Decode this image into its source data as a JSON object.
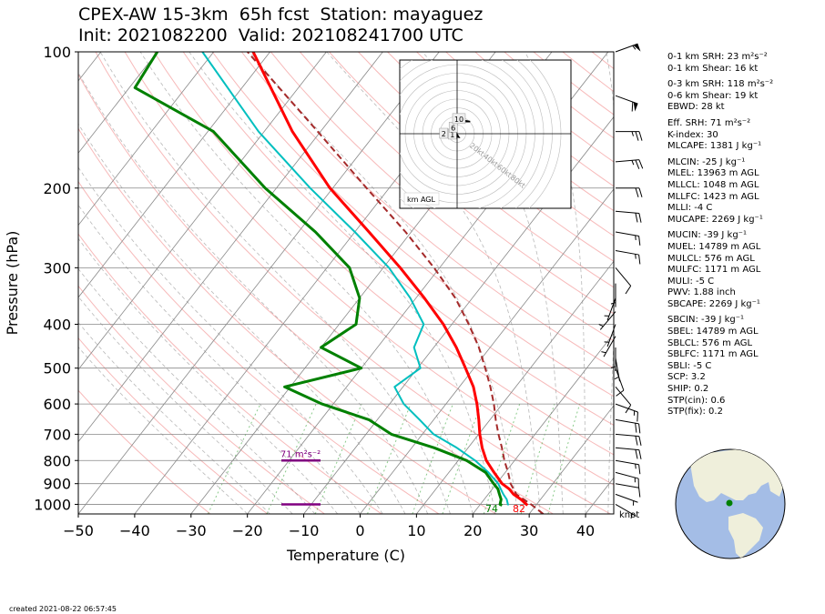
{
  "title_line1": "CPEX-AW 15-3km  65h fcst  Station: mayaguez",
  "title_line2": "Init: 2021082200  Valid: 202108241700 UTC",
  "created": "created 2021-08-22 06:57:45",
  "colors": {
    "temperature": "#ff0000",
    "dewpoint": "#008000",
    "wetbulb": "#00bfbf",
    "parcel": "#a52a2a",
    "srh_bar": "#800080",
    "dry_adiabat": "#f08080",
    "moist_adiabat": "#888888",
    "mixing_ratio": "#2ca02c",
    "isobar": "#888888"
  },
  "chart_data": {
    "type": "line",
    "subtype": "skew-T log-P",
    "xlabel": "Temperature (C)",
    "ylabel": "Pressure (hPa)",
    "xlim": [
      -50,
      45
    ],
    "ylim": [
      1050,
      100
    ],
    "yscale": "log",
    "xticks": [
      -50,
      -40,
      -30,
      -20,
      -10,
      0,
      10,
      20,
      30,
      40
    ],
    "yticks": [
      100,
      200,
      300,
      400,
      500,
      600,
      700,
      800,
      900,
      1000
    ],
    "grid": true,
    "series": [
      {
        "id": "temperature",
        "pressure": [
          1005,
          1000,
          975,
          950,
          925,
          900,
          850,
          800,
          750,
          700,
          650,
          600,
          550,
          500,
          450,
          400,
          350,
          300,
          250,
          200,
          150,
          100
        ],
        "values": [
          28.5,
          28.2,
          26.5,
          24.5,
          23.0,
          21.0,
          18.0,
          15.0,
          12.5,
          10.2,
          8.0,
          5.5,
          2.5,
          -1.5,
          -6.0,
          -11.5,
          -18.5,
          -27.0,
          -37.5,
          -50.5,
          -65.0,
          -83.0
        ]
      },
      {
        "id": "dewpoint",
        "pressure": [
          1005,
          1000,
          975,
          950,
          925,
          900,
          850,
          800,
          750,
          700,
          650,
          600,
          550,
          500,
          450,
          400,
          350,
          300,
          250,
          200,
          150,
          120,
          100
        ],
        "values": [
          24.0,
          23.5,
          23.0,
          22.0,
          21.0,
          19.5,
          16.5,
          11.5,
          4.0,
          -5.5,
          -11.5,
          -22.0,
          -31.0,
          -20.0,
          -30.0,
          -27.0,
          -30.0,
          -36.0,
          -47.0,
          -62.0,
          -79.0,
          -99.0,
          -100.0
        ]
      },
      {
        "id": "wetbulb",
        "pressure": [
          1005,
          1000,
          975,
          950,
          925,
          900,
          850,
          800,
          750,
          700,
          650,
          600,
          550,
          500,
          450,
          400,
          350,
          300,
          250,
          200,
          150,
          100
        ],
        "values": [
          25.0,
          24.9,
          24.0,
          22.7,
          21.5,
          20.3,
          17.0,
          13.0,
          8.0,
          2.0,
          -2.5,
          -7.5,
          -11.5,
          -9.5,
          -13.5,
          -15.0,
          -21.0,
          -29.0,
          -40.0,
          -54.0,
          -71.0,
          -92.0
        ]
      },
      {
        "id": "parcel",
        "pressure": [
          1050,
          1000,
          950,
          900,
          850,
          800,
          750,
          700,
          650,
          600,
          550,
          500,
          450,
          400,
          350,
          300,
          250,
          200,
          150,
          100
        ],
        "values": [
          32.5,
          29.0,
          25.0,
          22.5,
          20.5,
          18.2,
          16.0,
          13.5,
          11.0,
          8.5,
          5.5,
          2.0,
          -2.0,
          -7.0,
          -13.0,
          -21.0,
          -31.0,
          -44.0,
          -60.5,
          -84.0
        ]
      }
    ],
    "surface_labels": [
      {
        "text": "74",
        "temperature": 24.0,
        "color": "green"
      },
      {
        "text": "82",
        "temperature": 28.2,
        "color": "red"
      }
    ],
    "srh_label": "71 m²s⁻²",
    "srh_bars": [
      {
        "pressure": 800
      },
      {
        "pressure": 1000
      }
    ],
    "wind_barb_unit": "knot",
    "wind_barbs": [
      {
        "pressure": 100,
        "speed": 55,
        "direction": 70
      },
      {
        "pressure": 125,
        "speed": 60,
        "direction": 110
      },
      {
        "pressure": 150,
        "speed": 25,
        "direction": 90
      },
      {
        "pressure": 175,
        "speed": 25,
        "direction": 85
      },
      {
        "pressure": 200,
        "speed": 20,
        "direction": 90
      },
      {
        "pressure": 225,
        "speed": 20,
        "direction": 95
      },
      {
        "pressure": 250,
        "speed": 15,
        "direction": 100
      },
      {
        "pressure": 275,
        "speed": 15,
        "direction": 100
      },
      {
        "pressure": 300,
        "speed": 10,
        "direction": 140
      },
      {
        "pressure": 325,
        "speed": 5,
        "direction": 180
      },
      {
        "pressure": 350,
        "speed": 5,
        "direction": 200
      },
      {
        "pressure": 375,
        "speed": 5,
        "direction": 220
      },
      {
        "pressure": 400,
        "speed": 5,
        "direction": 200
      },
      {
        "pressure": 425,
        "speed": 5,
        "direction": 210
      },
      {
        "pressure": 450,
        "speed": 5,
        "direction": 180
      },
      {
        "pressure": 475,
        "speed": 5,
        "direction": 170
      },
      {
        "pressure": 500,
        "speed": 10,
        "direction": 160
      },
      {
        "pressure": 550,
        "speed": 10,
        "direction": 140
      },
      {
        "pressure": 600,
        "speed": 15,
        "direction": 110
      },
      {
        "pressure": 650,
        "speed": 20,
        "direction": 100
      },
      {
        "pressure": 700,
        "speed": 20,
        "direction": 95
      },
      {
        "pressure": 750,
        "speed": 20,
        "direction": 95
      },
      {
        "pressure": 800,
        "speed": 15,
        "direction": 100
      },
      {
        "pressure": 850,
        "speed": 15,
        "direction": 105
      },
      {
        "pressure": 900,
        "speed": 10,
        "direction": 100
      },
      {
        "pressure": 950,
        "speed": 5,
        "direction": 110
      },
      {
        "pressure": 1000,
        "speed": 5,
        "direction": 120
      }
    ],
    "hodograph": {
      "rings_kt": [
        20,
        40,
        60,
        80
      ],
      "ring_labels": [
        "20kt",
        "40kt",
        "60kt",
        "80kt"
      ],
      "legend": "km AGL",
      "height_labels": [
        {
          "text": "1",
          "u": -5,
          "v": -1
        },
        {
          "text": "2",
          "u": -15,
          "v": 0
        },
        {
          "text": "6",
          "u": -4,
          "v": 7
        },
        {
          "text": "10",
          "u": 0,
          "v": 17
        }
      ],
      "trace": [
        [
          -3,
          -3
        ],
        [
          2,
          -4
        ],
        [
          0,
          -1
        ],
        [
          -5,
          -1
        ],
        [
          -10,
          0
        ],
        [
          -14,
          2
        ],
        [
          -16,
          5
        ],
        [
          -13,
          4
        ],
        [
          -8,
          5
        ],
        [
          -6,
          9
        ],
        [
          -4,
          12
        ],
        [
          0,
          12
        ],
        [
          5,
          14
        ],
        [
          15,
          14
        ],
        [
          10,
          15
        ],
        [
          0,
          15
        ]
      ]
    }
  },
  "stats": [
    {
      "id": "srh1",
      "text": "0-1 km SRH: 23 m²s⁻²",
      "gap": false
    },
    {
      "id": "shr1",
      "text": "0-1 km Shear: 16 kt",
      "gap": true
    },
    {
      "id": "srh3",
      "text": "0-3 km SRH: 118 m²s⁻²",
      "gap": false
    },
    {
      "id": "shr6",
      "text": "0-6 km Shear: 19 kt",
      "gap": false
    },
    {
      "id": "ebwd",
      "text": "EBWD: 28 kt",
      "gap": true
    },
    {
      "id": "esrh",
      "text": "Eff. SRH: 71 m²s⁻²",
      "gap": false
    },
    {
      "id": "kidx",
      "text": "K-index: 30",
      "gap": false
    },
    {
      "id": "mlcape",
      "text": "MLCAPE: 1381 J kg⁻¹",
      "gap": true
    },
    {
      "id": "mlcin",
      "text": "MLCIN: -25 J kg⁻¹",
      "gap": false
    },
    {
      "id": "mlel",
      "text": "MLEL: 13963 m AGL",
      "gap": false
    },
    {
      "id": "mllcl",
      "text": "MLLCL: 1048 m AGL",
      "gap": false
    },
    {
      "id": "mllfc",
      "text": "MLLFC: 1423 m AGL",
      "gap": false
    },
    {
      "id": "mlli",
      "text": "MLLI: -4 C",
      "gap": false
    },
    {
      "id": "mucape",
      "text": "MUCAPE: 2269 J kg⁻¹",
      "gap": true
    },
    {
      "id": "mucin",
      "text": "MUCIN: -39 J kg⁻¹",
      "gap": false
    },
    {
      "id": "muel",
      "text": "MUEL: 14789 m AGL",
      "gap": false
    },
    {
      "id": "mulcl",
      "text": "MULCL: 576 m AGL",
      "gap": false
    },
    {
      "id": "mulfc",
      "text": "MULFC: 1171 m AGL",
      "gap": false
    },
    {
      "id": "muli",
      "text": "MULI: -5 C",
      "gap": false
    },
    {
      "id": "pwv",
      "text": "PWV: 1.88 inch",
      "gap": false
    },
    {
      "id": "sbcape",
      "text": "SBCAPE: 2269 J kg⁻¹",
      "gap": true
    },
    {
      "id": "sbcin",
      "text": "SBCIN: -39 J kg⁻¹",
      "gap": false
    },
    {
      "id": "sbel",
      "text": "SBEL: 14789 m AGL",
      "gap": false
    },
    {
      "id": "sblcl",
      "text": "SBLCL: 576 m AGL",
      "gap": false
    },
    {
      "id": "sblfc",
      "text": "SBLFC: 1171 m AGL",
      "gap": false
    },
    {
      "id": "sbli",
      "text": "SBLI: -5 C",
      "gap": false
    },
    {
      "id": "scp",
      "text": "SCP: 3.2",
      "gap": false
    },
    {
      "id": "ship",
      "text": "SHIP: 0.2",
      "gap": false
    },
    {
      "id": "stpcin",
      "text": "STP(cin): 0.6",
      "gap": false
    },
    {
      "id": "stpfix",
      "text": "STP(fix): 0.2",
      "gap": false
    }
  ]
}
